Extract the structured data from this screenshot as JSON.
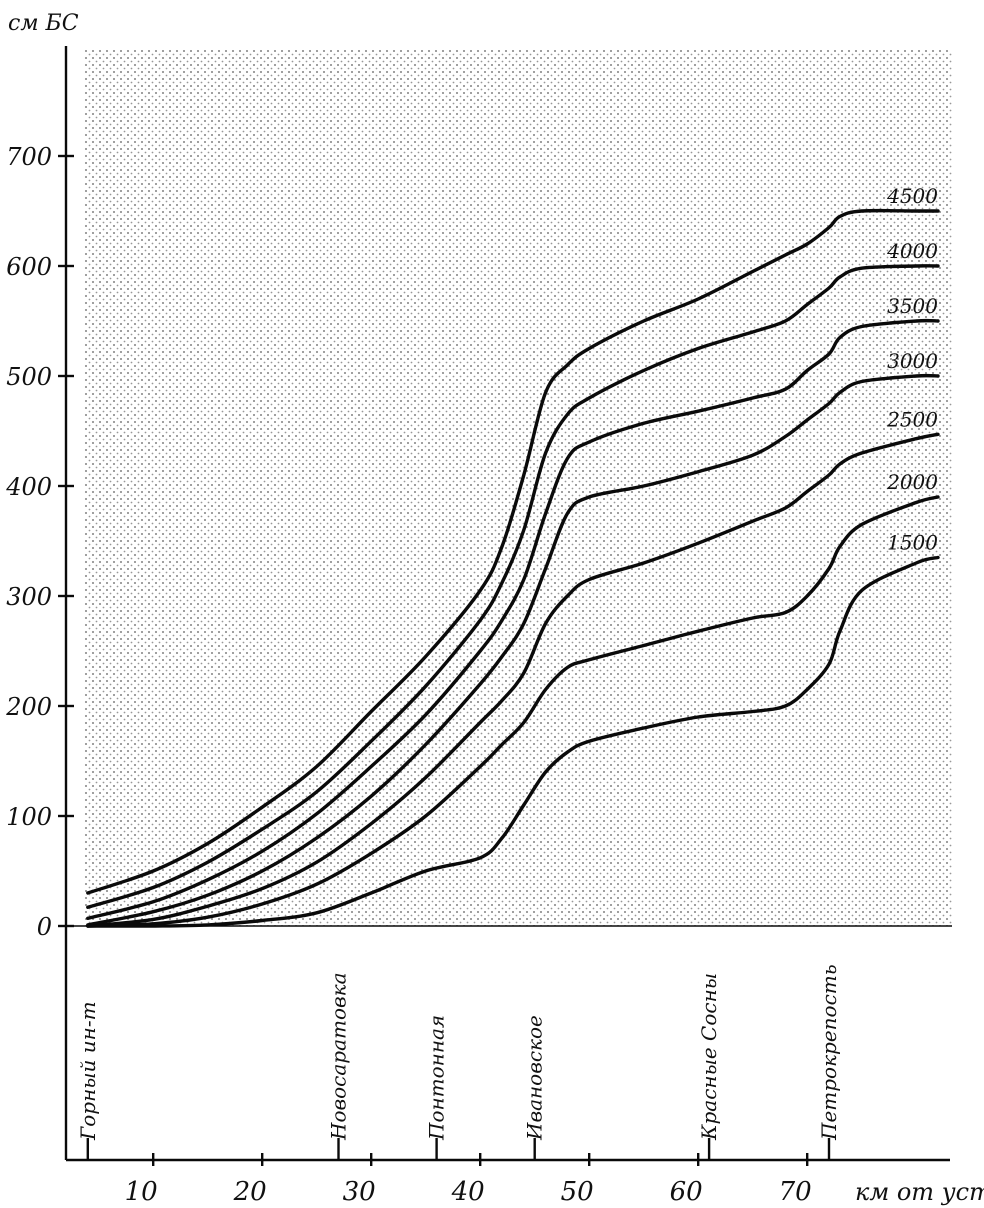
{
  "chart_data": {
    "type": "line",
    "y_unit_label": "см БС",
    "x_unit_label": "км от устья",
    "y_ticks": [
      "0",
      "100",
      "200",
      "300",
      "400",
      "500",
      "600",
      "700"
    ],
    "x_ticks": [
      "10",
      "20",
      "30",
      "40",
      "50",
      "60",
      "70"
    ],
    "x_range": [
      2,
      82
    ],
    "y_range": [
      0,
      780
    ],
    "shaded_background": true,
    "stations": [
      {
        "label": "Горный ин-т",
        "km": 4
      },
      {
        "label": "Новосаратовка",
        "km": 27
      },
      {
        "label": "Понтонная",
        "km": 36
      },
      {
        "label": "Ивановское",
        "km": 45
      },
      {
        "label": "Красные Сосны",
        "km": 61
      },
      {
        "label": "Петрокрепость",
        "km": 72
      }
    ],
    "x": [
      4,
      10,
      15,
      20,
      25,
      30,
      35,
      40,
      42,
      44,
      46,
      48,
      50,
      55,
      60,
      65,
      68,
      70,
      72,
      73,
      75,
      80,
      82
    ],
    "series": [
      {
        "name": "4500",
        "values": [
          30,
          50,
          75,
          108,
          145,
          195,
          245,
          305,
          345,
          410,
          485,
          510,
          525,
          550,
          570,
          595,
          610,
          620,
          635,
          645,
          650,
          650,
          650
        ]
      },
      {
        "name": "4000",
        "values": [
          17,
          35,
          58,
          88,
          122,
          168,
          218,
          278,
          312,
          360,
          430,
          465,
          480,
          505,
          525,
          540,
          550,
          565,
          580,
          590,
          598,
          600,
          600
        ]
      },
      {
        "name": "3500",
        "values": [
          7,
          22,
          42,
          68,
          102,
          145,
          192,
          250,
          278,
          315,
          375,
          425,
          440,
          457,
          468,
          480,
          488,
          505,
          520,
          535,
          545,
          550,
          550
        ]
      },
      {
        "name": "3000",
        "values": [
          1,
          13,
          28,
          50,
          80,
          118,
          165,
          220,
          245,
          275,
          325,
          375,
          390,
          400,
          413,
          428,
          445,
          460,
          475,
          485,
          495,
          500,
          500
        ]
      },
      {
        "name": "2500",
        "values": [
          0,
          6,
          18,
          34,
          58,
          93,
          135,
          185,
          205,
          230,
          275,
          300,
          315,
          330,
          348,
          368,
          380,
          395,
          410,
          420,
          430,
          443,
          447
        ]
      },
      {
        "name": "2000",
        "values": [
          0,
          2,
          8,
          20,
          38,
          66,
          100,
          145,
          165,
          185,
          215,
          235,
          242,
          255,
          268,
          280,
          285,
          300,
          325,
          345,
          365,
          385,
          390
        ]
      },
      {
        "name": "1500",
        "values": [
          0,
          0,
          1,
          5,
          12,
          30,
          50,
          62,
          80,
          110,
          140,
          158,
          168,
          180,
          190,
          195,
          200,
          215,
          238,
          268,
          305,
          330,
          335
        ]
      }
    ]
  }
}
